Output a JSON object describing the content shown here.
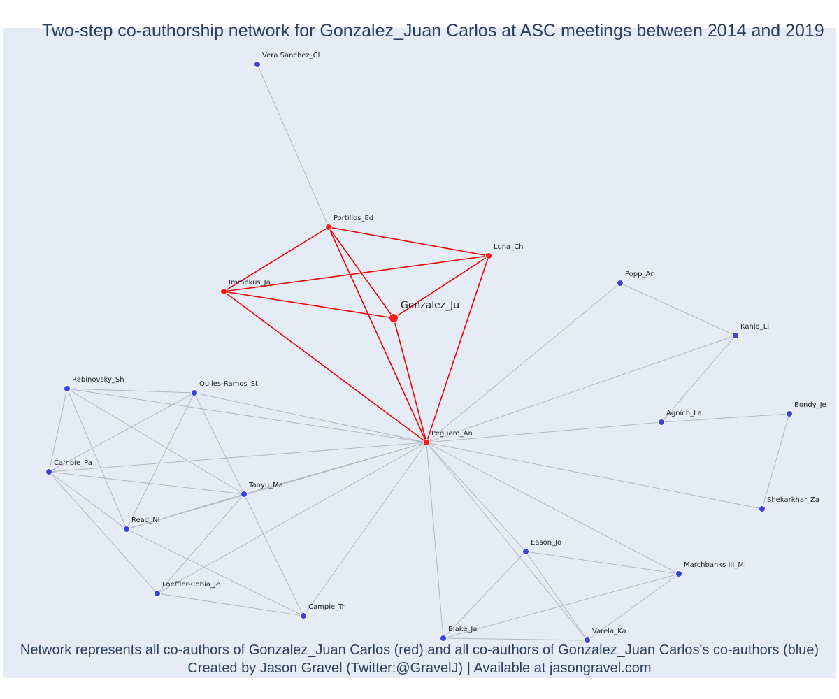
{
  "title": "Two-step co-authorship network for Gonzalez_Juan Carlos at ASC meetings between 2014 and 2019",
  "caption_line1": "Network represents all co-authors of Gonzalez_Juan Carlos (red) and all co-authors of Gonzalez_Juan Carlos's co-authors (blue)",
  "caption_line2": "Created by Jason Gravel (Twitter:@GravelJ) | Available at jasongravel.com",
  "colors": {
    "coauthor": "#ff1a1a",
    "second_step": "#3b41e3",
    "red_edge": "#ee0000",
    "grey_edge": "#b0b4c4",
    "background": "#e5ecf6",
    "text": "#2a3f5f"
  },
  "nodes": [
    {
      "id": "Gonzalez_Ju",
      "group": "focal"
    },
    {
      "id": "Portillos_Ed",
      "group": "coauthor"
    },
    {
      "id": "Luna_Ch",
      "group": "coauthor"
    },
    {
      "id": "Immekus_Ja",
      "group": "coauthor"
    },
    {
      "id": "Peguero_An",
      "group": "coauthor"
    },
    {
      "id": "Vera Sanchez_Cl",
      "group": "second"
    },
    {
      "id": "Popp_An",
      "group": "second"
    },
    {
      "id": "Kahle_Li",
      "group": "second"
    },
    {
      "id": "Agnich_La",
      "group": "second"
    },
    {
      "id": "Bondy_Je",
      "group": "second"
    },
    {
      "id": "Shekarkhar_Za",
      "group": "second"
    },
    {
      "id": "Rabinovsky_Sh",
      "group": "second"
    },
    {
      "id": "Quiles-Ramos_St",
      "group": "second"
    },
    {
      "id": "Campie_Pa",
      "group": "second"
    },
    {
      "id": "Tanyu_Ma",
      "group": "second"
    },
    {
      "id": "Read_Ni",
      "group": "second"
    },
    {
      "id": "Loeffler-Cobia_Je",
      "group": "second"
    },
    {
      "id": "Campie_Tr",
      "group": "second"
    },
    {
      "id": "Eason_Jo",
      "group": "second"
    },
    {
      "id": "Marchbanks III_Mi",
      "group": "second"
    },
    {
      "id": "Blake_Ja",
      "group": "second"
    },
    {
      "id": "Varela_Ka",
      "group": "second"
    }
  ],
  "edges": [
    [
      "Gonzalez_Ju",
      "Portillos_Ed"
    ],
    [
      "Gonzalez_Ju",
      "Luna_Ch"
    ],
    [
      "Gonzalez_Ju",
      "Immekus_Ja"
    ],
    [
      "Gonzalez_Ju",
      "Peguero_An"
    ],
    [
      "Portillos_Ed",
      "Luna_Ch"
    ],
    [
      "Portillos_Ed",
      "Immekus_Ja"
    ],
    [
      "Portillos_Ed",
      "Peguero_An"
    ],
    [
      "Luna_Ch",
      "Immekus_Ja"
    ],
    [
      "Luna_Ch",
      "Peguero_An"
    ],
    [
      "Immekus_Ja",
      "Peguero_An"
    ],
    [
      "Portillos_Ed",
      "Vera Sanchez_Cl"
    ],
    [
      "Peguero_An",
      "Popp_An"
    ],
    [
      "Popp_An",
      "Kahle_Li"
    ],
    [
      "Peguero_An",
      "Kahle_Li"
    ],
    [
      "Kahle_Li",
      "Agnich_La"
    ],
    [
      "Peguero_An",
      "Agnich_La"
    ],
    [
      "Agnich_La",
      "Bondy_Je"
    ],
    [
      "Bondy_Je",
      "Shekarkhar_Za"
    ],
    [
      "Peguero_An",
      "Shekarkhar_Za"
    ],
    [
      "Peguero_An",
      "Rabinovsky_Sh"
    ],
    [
      "Peguero_An",
      "Quiles-Ramos_St"
    ],
    [
      "Peguero_An",
      "Campie_Pa"
    ],
    [
      "Peguero_An",
      "Tanyu_Ma"
    ],
    [
      "Peguero_An",
      "Read_Ni"
    ],
    [
      "Peguero_An",
      "Loeffler-Cobia_Je"
    ],
    [
      "Peguero_An",
      "Campie_Tr"
    ],
    [
      "Peguero_An",
      "Eason_Jo"
    ],
    [
      "Peguero_An",
      "Marchbanks III_Mi"
    ],
    [
      "Peguero_An",
      "Blake_Ja"
    ],
    [
      "Peguero_An",
      "Varela_Ka"
    ],
    [
      "Rabinovsky_Sh",
      "Quiles-Ramos_St"
    ],
    [
      "Rabinovsky_Sh",
      "Campie_Pa"
    ],
    [
      "Rabinovsky_Sh",
      "Tanyu_Ma"
    ],
    [
      "Rabinovsky_Sh",
      "Read_Ni"
    ],
    [
      "Quiles-Ramos_St",
      "Campie_Pa"
    ],
    [
      "Quiles-Ramos_St",
      "Tanyu_Ma"
    ],
    [
      "Quiles-Ramos_St",
      "Read_Ni"
    ],
    [
      "Campie_Pa",
      "Tanyu_Ma"
    ],
    [
      "Campie_Pa",
      "Read_Ni"
    ],
    [
      "Campie_Pa",
      "Loeffler-Cobia_Je"
    ],
    [
      "Tanyu_Ma",
      "Read_Ni"
    ],
    [
      "Tanyu_Ma",
      "Loeffler-Cobia_Je"
    ],
    [
      "Tanyu_Ma",
      "Campie_Tr"
    ],
    [
      "Read_Ni",
      "Campie_Tr"
    ],
    [
      "Loeffler-Cobia_Je",
      "Campie_Tr"
    ],
    [
      "Eason_Jo",
      "Marchbanks III_Mi"
    ],
    [
      "Eason_Jo",
      "Blake_Ja"
    ],
    [
      "Eason_Jo",
      "Varela_Ka"
    ],
    [
      "Marchbanks III_Mi",
      "Blake_Ja"
    ],
    [
      "Marchbanks III_Mi",
      "Varela_Ka"
    ],
    [
      "Blake_Ja",
      "Varela_Ka"
    ]
  ]
}
